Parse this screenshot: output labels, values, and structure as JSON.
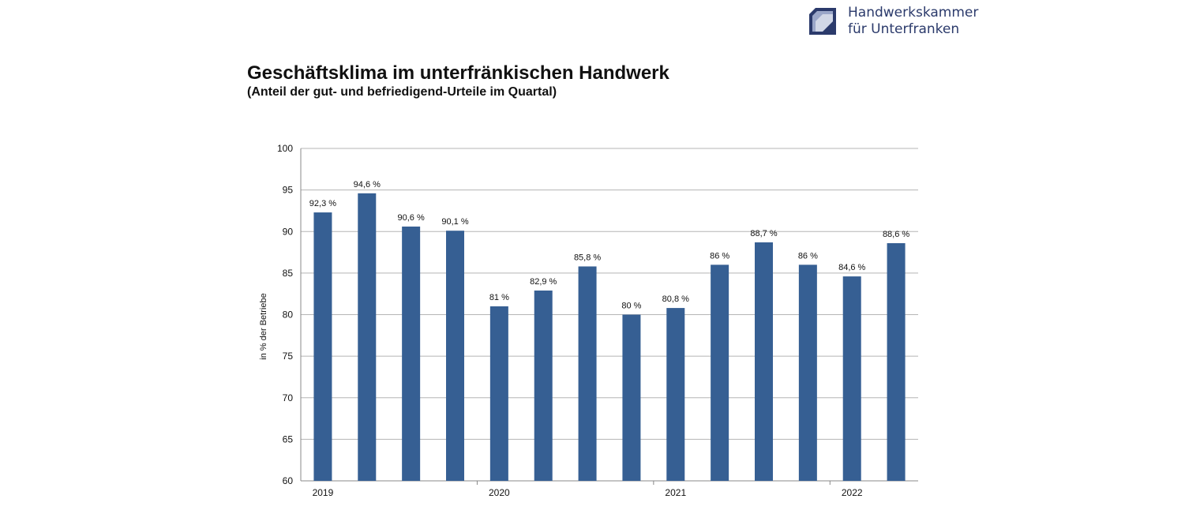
{
  "logo": {
    "line1": "Handwerkskammer",
    "line2": "für Unterfranken",
    "color": "#2b3a6b",
    "icon": "hwk-logo-icon"
  },
  "chart_data": {
    "type": "bar",
    "title": "Geschäftsklima im unterfränkischen Handwerk",
    "subtitle": "(Anteil der gut- und befriedigend-Urteile im Quartal)",
    "ylabel": "in % der Betriebe",
    "xlabel": "",
    "ylim": [
      60,
      100
    ],
    "yticks": [
      60,
      65,
      70,
      75,
      80,
      85,
      90,
      95,
      100
    ],
    "grid": true,
    "legend": "none",
    "bar_color": "#365f93",
    "year_labels": [
      "2019",
      "2020",
      "2021",
      "2022"
    ],
    "values": [
      92.3,
      94.6,
      90.6,
      90.1,
      81,
      82.9,
      85.8,
      80,
      80.8,
      86,
      88.7,
      86,
      84.6,
      88.6
    ],
    "data_labels": [
      "92,3 %",
      "94,6 %",
      "90,6 %",
      "90,1 %",
      "81 %",
      "82,9 %",
      "85,8 %",
      "80 %",
      "80,8 %",
      "86 %",
      "88,7 %",
      "86 %",
      "84,6 %",
      "88,6 %"
    ]
  }
}
